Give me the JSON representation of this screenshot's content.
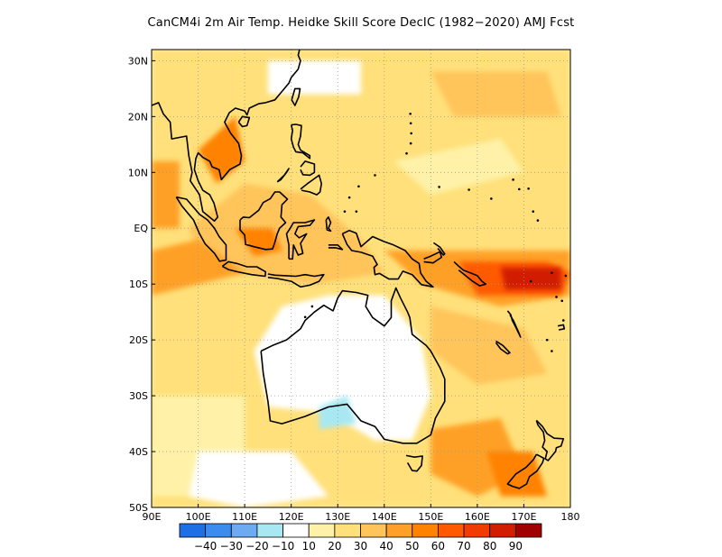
{
  "title": "CanCM4i  2m Air Temp. Heidke Skill Score DecIC (1982−2020) AMJ Fcst",
  "map": {
    "lon_range": [
      90,
      180
    ],
    "lat_range": [
      -50,
      32
    ],
    "lon_ticks": [
      {
        "value": 90,
        "label": "90E"
      },
      {
        "value": 100,
        "label": "100E"
      },
      {
        "value": 110,
        "label": "110E"
      },
      {
        "value": 120,
        "label": "120E"
      },
      {
        "value": 130,
        "label": "130E"
      },
      {
        "value": 140,
        "label": "140E"
      },
      {
        "value": 150,
        "label": "150E"
      },
      {
        "value": 160,
        "label": "160E"
      },
      {
        "value": 170,
        "label": "170E"
      },
      {
        "value": 180,
        "label": "180"
      }
    ],
    "lat_ticks": [
      {
        "value": 30,
        "label": "30N"
      },
      {
        "value": 20,
        "label": "20N"
      },
      {
        "value": 10,
        "label": "10N"
      },
      {
        "value": 0,
        "label": "EQ"
      },
      {
        "value": -10,
        "label": "10S"
      },
      {
        "value": -20,
        "label": "20S"
      },
      {
        "value": -30,
        "label": "30S"
      },
      {
        "value": -40,
        "label": "40S"
      },
      {
        "value": -50,
        "label": "50S"
      }
    ],
    "grid": "dotted"
  },
  "colorbar": {
    "colors": [
      "#1e6ee6",
      "#3c8cf0",
      "#6eaaf2",
      "#a8e8f2",
      "#ffffff",
      "#fff2a8",
      "#ffe07a",
      "#ffc45a",
      "#ffa028",
      "#ff8200",
      "#ff5a00",
      "#f03c00",
      "#d21e00",
      "#a00000"
    ],
    "labels": [
      "−40",
      "−30",
      "−20",
      "−10",
      "10",
      "20",
      "30",
      "40",
      "50",
      "60",
      "70",
      "80",
      "90"
    ]
  }
}
